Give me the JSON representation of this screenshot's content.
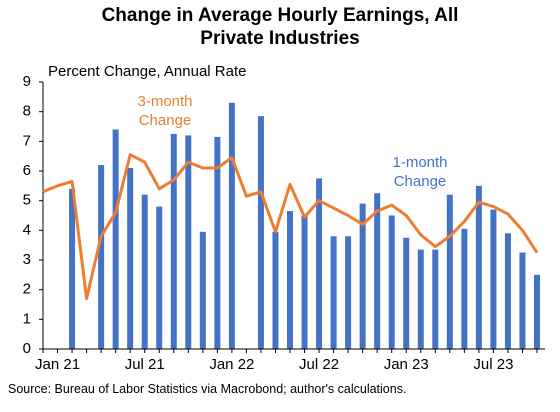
{
  "chart_data": {
    "type": "bar-line",
    "title": "Change in Average Hourly Earnings, All Private Industries",
    "y_label": "Percent Change, Annual Rate",
    "source": "Source: Bureau of Labor Statistics via Macrobond; author's calculations.",
    "categories": [
      null,
      "Jan 21",
      null,
      null,
      null,
      null,
      null,
      "Jul 21",
      null,
      null,
      null,
      null,
      null,
      "Jan 22",
      null,
      null,
      null,
      null,
      null,
      "Jul 22",
      null,
      null,
      null,
      null,
      null,
      "Jan 23",
      null,
      null,
      null,
      null,
      null,
      "Jul 23",
      null,
      null,
      null
    ],
    "ylim": [
      0,
      9
    ],
    "yticks": [
      0,
      1,
      2,
      3,
      4,
      5,
      6,
      7,
      8,
      9
    ],
    "series": [
      {
        "name": "1-month Change",
        "kind": "bar",
        "color": "#4472c4",
        "values": [
          null,
          null,
          5.4,
          null,
          6.2,
          7.4,
          6.1,
          5.2,
          4.8,
          7.25,
          7.2,
          3.95,
          7.15,
          8.3,
          null,
          7.85,
          3.95,
          4.65,
          4.5,
          5.75,
          3.8,
          3.8,
          4.9,
          5.25,
          4.5,
          3.75,
          3.35,
          3.35,
          5.2,
          4.05,
          5.5,
          4.7,
          3.9,
          3.25,
          2.5
        ]
      },
      {
        "name": "3-month Change",
        "kind": "line",
        "color": "#ed7d31",
        "values": [
          5.3,
          5.5,
          5.65,
          1.7,
          3.8,
          4.6,
          6.55,
          6.3,
          5.4,
          5.7,
          6.3,
          6.1,
          6.1,
          6.45,
          5.15,
          5.3,
          3.95,
          5.55,
          4.45,
          5.0,
          4.75,
          4.5,
          4.2,
          4.65,
          4.85,
          4.5,
          3.85,
          3.45,
          3.8,
          4.3,
          4.95,
          4.8,
          4.55,
          4.0,
          3.25
        ]
      }
    ]
  }
}
